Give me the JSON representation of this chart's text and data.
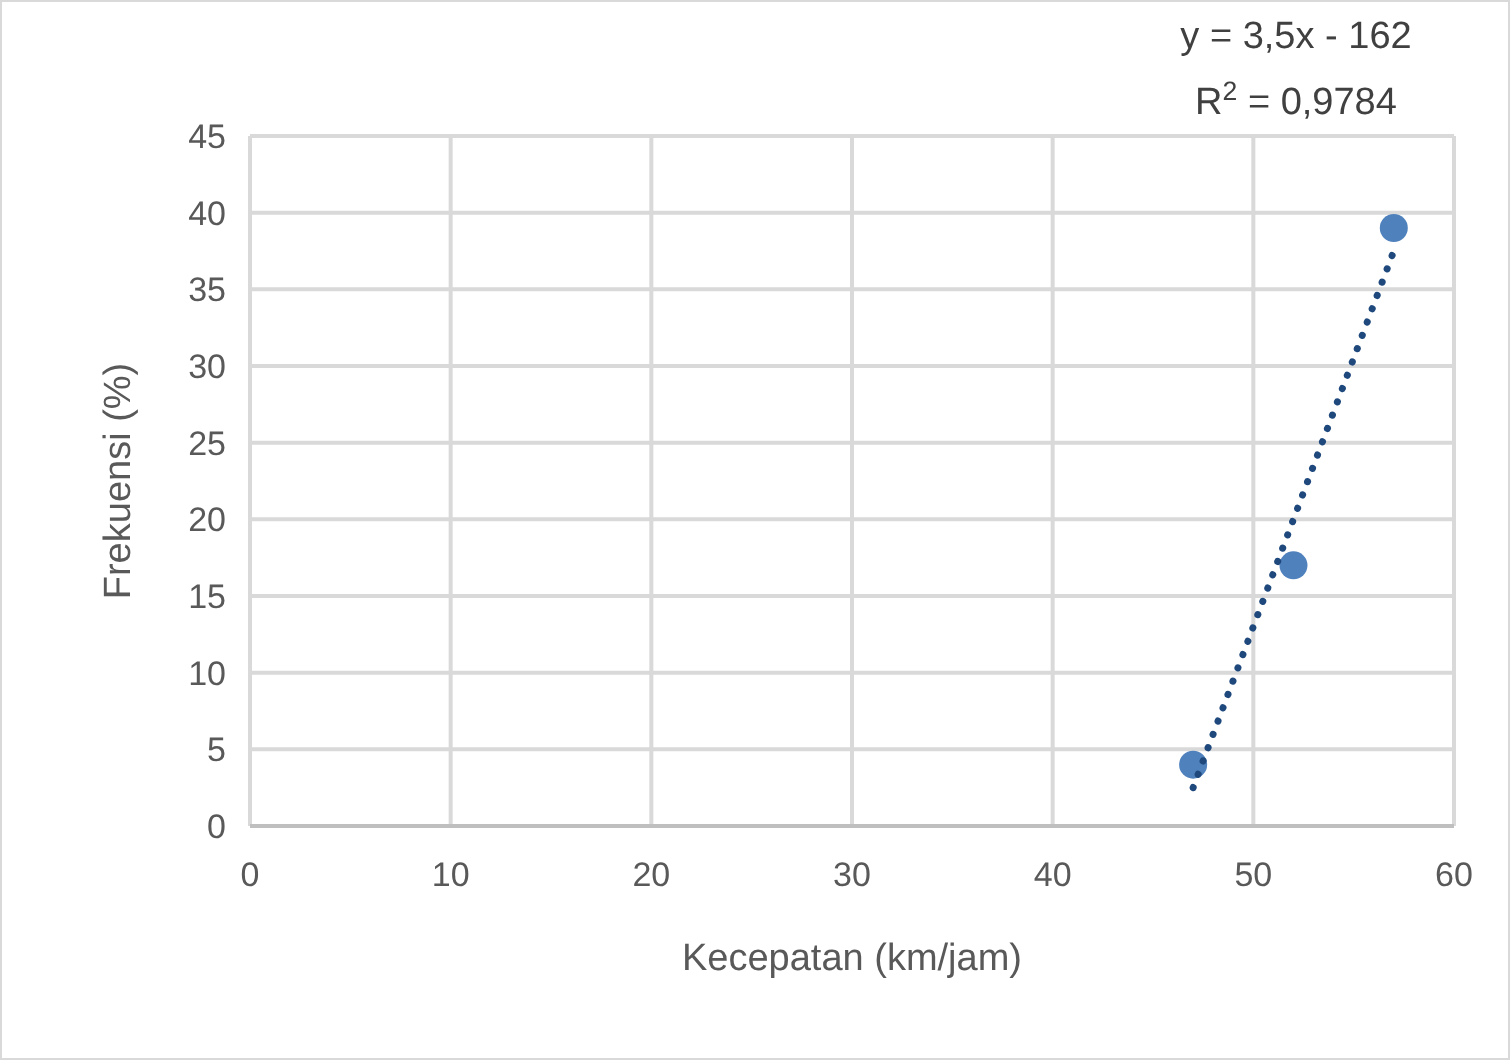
{
  "chart_data": {
    "type": "scatter",
    "xlabel": "Kecepatan (km/jam)",
    "ylabel": "Frekuensi (%)",
    "xlim": [
      0,
      60
    ],
    "xticks": [
      0,
      10,
      20,
      30,
      40,
      50,
      60
    ],
    "ylim": [
      0,
      45
    ],
    "yticks": [
      0,
      5,
      10,
      15,
      20,
      25,
      30,
      35,
      40,
      45
    ],
    "grid": true,
    "marker": "circle",
    "series": [
      {
        "color": "#4f81bd",
        "x": [
          47,
          52,
          57
        ],
        "values": [
          4,
          17,
          39
        ]
      },
      {
        "type": "line",
        "color": "#1f497d",
        "line_style": "dotted",
        "marker": "none",
        "x": [
          47,
          57
        ],
        "values": [
          2.5,
          37.5
        ]
      }
    ],
    "annotations": [
      "y = 3,5x - 162",
      "R$^{2}$ = 0,9784"
    ]
  }
}
